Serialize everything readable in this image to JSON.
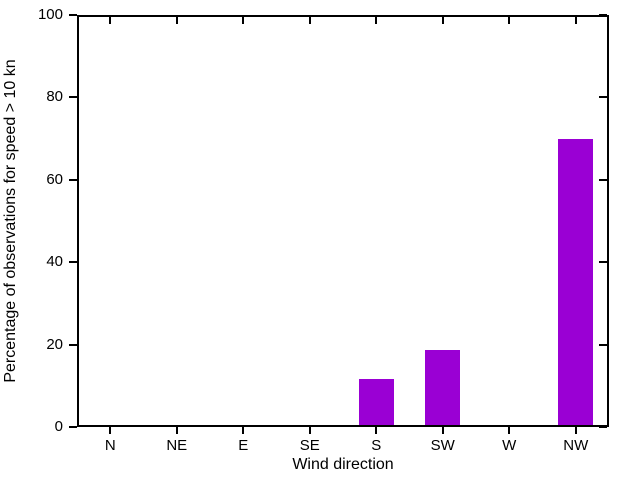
{
  "chart_data": {
    "type": "bar",
    "title": "",
    "xlabel": "Wind direction",
    "ylabel": "Percentage of observations for speed > 10 kn",
    "categories": [
      "N",
      "NE",
      "E",
      "SE",
      "S",
      "SW",
      "W",
      "NW"
    ],
    "values": [
      0,
      0,
      0,
      0,
      11.7,
      18.7,
      0,
      69.8
    ],
    "yticks": [
      0,
      20,
      40,
      60,
      80,
      100
    ],
    "ylim": [
      0,
      100
    ],
    "grid": false,
    "legend": false,
    "bar_color": "#9A00D4",
    "axis_color": "#000000",
    "text_color": "#000000",
    "background_color": "#FFFFFF",
    "tick_style": "outward bottom-left, mirrored inward top-right"
  }
}
